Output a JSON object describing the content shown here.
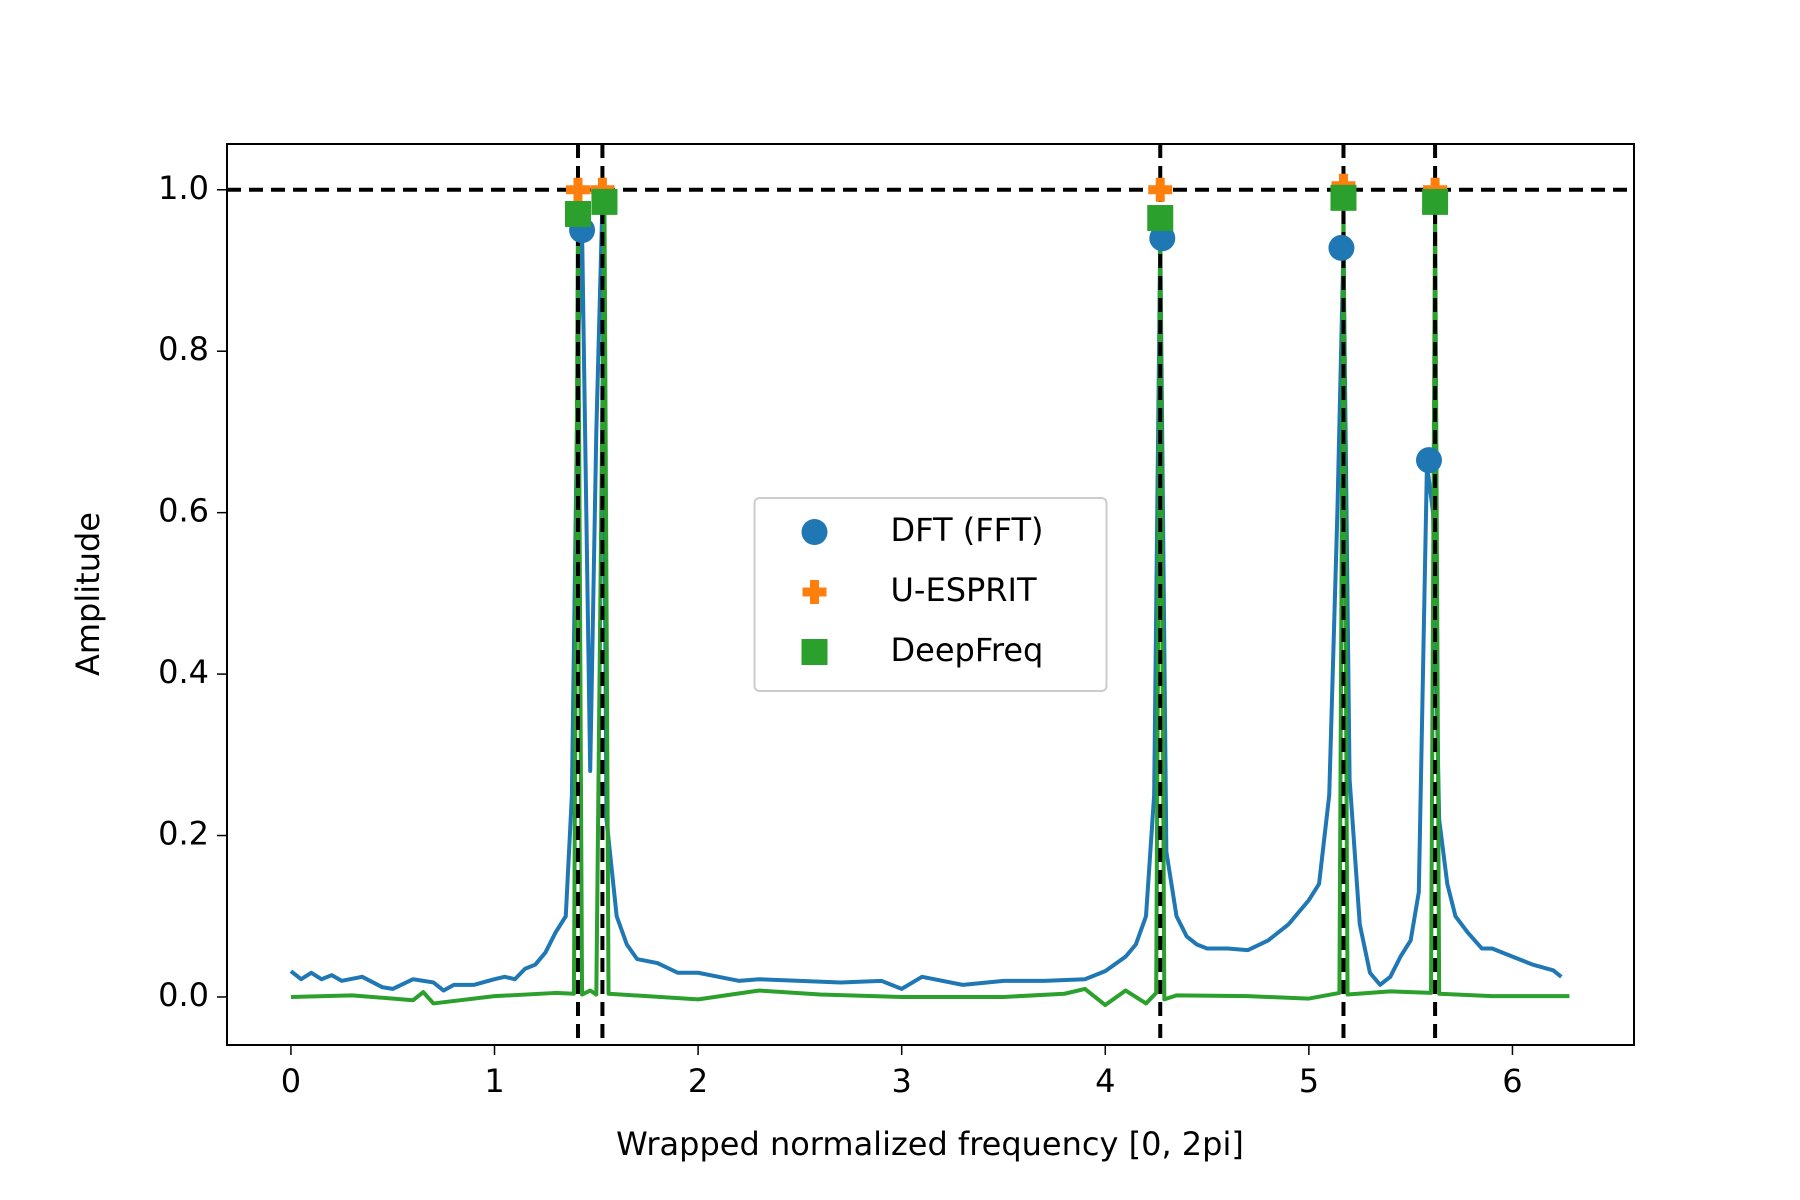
{
  "chart_data": {
    "type": "line",
    "x_label": "Wrapped normalized frequency [0, 2pi]",
    "y_label": "Amplitude",
    "xlim": [
      -0.314,
      6.597
    ],
    "ylim": [
      -0.0595,
      1.0567
    ],
    "xticks": [
      0,
      1,
      2,
      3,
      4,
      5,
      6
    ],
    "yticks": [
      {
        "value": 0,
        "label": "0.0"
      },
      0.2,
      0.4,
      0.6,
      0.8,
      {
        "value": 1,
        "label": "1.0"
      }
    ],
    "legend_position": "center",
    "reference_lines": {
      "color": "#000000",
      "y": [
        1.0
      ],
      "x": [
        1.41,
        1.53,
        4.27,
        5.17,
        5.62
      ]
    },
    "lines": [
      {
        "color": "#1f77b4",
        "x": [
          0,
          0.05,
          0.1,
          0.15,
          0.2,
          0.25,
          0.35,
          0.45,
          0.5,
          0.6,
          0.7,
          0.75,
          0.8,
          0.9,
          1.0,
          1.05,
          1.1,
          1.15,
          1.2,
          1.25,
          1.3,
          1.35,
          1.38,
          1.41,
          1.43,
          1.47,
          1.5,
          1.53,
          1.55,
          1.6,
          1.65,
          1.7,
          1.8,
          1.9,
          2.0,
          2.1,
          2.2,
          2.3,
          2.5,
          2.7,
          2.9,
          3.0,
          3.1,
          3.3,
          3.5,
          3.7,
          3.9,
          4.0,
          4.1,
          4.15,
          4.2,
          4.24,
          4.27,
          4.3,
          4.35,
          4.4,
          4.45,
          4.5,
          4.6,
          4.7,
          4.8,
          4.9,
          5.0,
          5.05,
          5.1,
          5.14,
          5.17,
          5.2,
          5.25,
          5.3,
          5.35,
          5.4,
          5.45,
          5.5,
          5.54,
          5.58,
          5.61,
          5.64,
          5.68,
          5.72,
          5.78,
          5.85,
          5.9,
          6.0,
          6.1,
          6.2,
          6.24
        ],
        "values": [
          0.032,
          0.022,
          0.03,
          0.022,
          0.027,
          0.02,
          0.025,
          0.012,
          0.01,
          0.022,
          0.018,
          0.008,
          0.015,
          0.015,
          0.022,
          0.025,
          0.022,
          0.035,
          0.04,
          0.055,
          0.08,
          0.1,
          0.25,
          0.8,
          0.95,
          0.28,
          0.7,
          0.985,
          0.22,
          0.1,
          0.065,
          0.047,
          0.042,
          0.03,
          0.03,
          0.025,
          0.02,
          0.022,
          0.02,
          0.018,
          0.02,
          0.01,
          0.025,
          0.015,
          0.02,
          0.02,
          0.022,
          0.032,
          0.05,
          0.065,
          0.1,
          0.25,
          0.94,
          0.18,
          0.1,
          0.075,
          0.065,
          0.06,
          0.06,
          0.058,
          0.07,
          0.09,
          0.12,
          0.14,
          0.25,
          0.6,
          0.928,
          0.27,
          0.09,
          0.03,
          0.015,
          0.025,
          0.05,
          0.07,
          0.13,
          0.66,
          0.6,
          0.22,
          0.14,
          0.1,
          0.08,
          0.06,
          0.06,
          0.05,
          0.04,
          0.033,
          0.025
        ]
      },
      {
        "color": "#2ca02c",
        "x": [
          0,
          0.3,
          0.6,
          0.65,
          0.7,
          1.0,
          1.3,
          1.39,
          1.41,
          1.43,
          1.47,
          1.5,
          1.54,
          1.56,
          2.0,
          2.3,
          2.6,
          3.0,
          3.5,
          3.8,
          3.9,
          4.0,
          4.1,
          4.2,
          4.25,
          4.27,
          4.29,
          4.35,
          4.7,
          5.0,
          5.15,
          5.17,
          5.19,
          5.4,
          5.6,
          5.62,
          5.64,
          5.9,
          6.28
        ],
        "values": [
          0,
          0.002,
          -0.004,
          0.006,
          -0.008,
          0.001,
          0.005,
          0.004,
          0.97,
          0.003,
          0.008,
          0.003,
          0.985,
          0.004,
          -0.003,
          0.008,
          0.003,
          0,
          0,
          0.004,
          0.01,
          -0.01,
          0.008,
          -0.008,
          0.005,
          0.965,
          -0.003,
          0.002,
          0.001,
          -0.002,
          0.005,
          0.99,
          0.003,
          0.007,
          0.005,
          0.985,
          0.004,
          0.001,
          0.001
        ]
      }
    ],
    "series": [
      {
        "name": "DFT (FFT)",
        "color": "#1f77b4",
        "marker": "circle",
        "x": [
          1.43,
          1.54,
          4.28,
          5.16,
          5.59
        ],
        "values": [
          0.95,
          0.985,
          0.94,
          0.928,
          0.665
        ]
      },
      {
        "name": "U-ESPRIT",
        "color": "#ff7f0e",
        "marker": "plus",
        "x": [
          1.41,
          1.53,
          4.27,
          5.17,
          5.62
        ],
        "values": [
          1.0,
          1.0,
          1.0,
          1.005,
          1.0
        ]
      },
      {
        "name": "DeepFreq",
        "color": "#2ca02c",
        "marker": "square",
        "x": [
          1.41,
          1.54,
          4.27,
          5.17,
          5.62
        ],
        "values": [
          0.97,
          0.985,
          0.965,
          0.99,
          0.985
        ]
      }
    ]
  }
}
